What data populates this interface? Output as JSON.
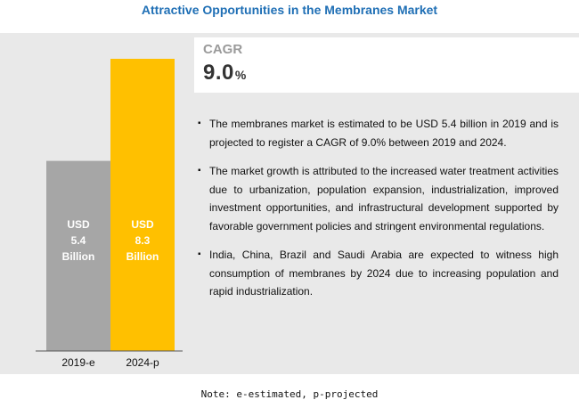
{
  "title": "Attractive Opportunities in the Membranes Market",
  "cagr": {
    "label": "CAGR",
    "value": "9.0",
    "unit": "%"
  },
  "bullets": [
    "The membranes market is estimated to be USD 5.4 billion in 2019 and is projected to register a CAGR of 9.0% between 2019 and 2024.",
    "The market growth is attributed to the increased water treatment activities due to urbanization, population expansion, industrialization, improved investment opportunities, and infrastructural development supported by favorable government policies and stringent environmental regulations.",
    "India, China, Brazil and Saudi Arabia are expected to witness high consumption of membranes by 2024 due to increasing population and rapid industrialization."
  ],
  "note": "Note: e-estimated, p-projected",
  "colors": {
    "bar_2019": "#a6a6a6",
    "bar_2024": "#ffc000",
    "title": "#1f6fb5"
  },
  "chart_data": {
    "type": "bar",
    "categories": [
      "2019-e",
      "2024-p"
    ],
    "values": [
      5.4,
      8.3
    ],
    "labels": [
      [
        "USD",
        "5.4",
        "Billion"
      ],
      [
        "USD",
        "8.3",
        "Billion"
      ]
    ],
    "ylim": [
      0,
      8.3
    ],
    "grid": false
  }
}
